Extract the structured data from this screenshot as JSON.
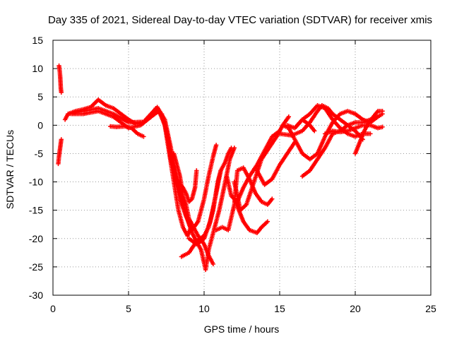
{
  "chart_data": {
    "type": "scatter",
    "title": "Day 335 of 2021, Sidereal Day-to-day VTEC variation (SDTVAR) for receiver xmis",
    "xlabel": "GPS time / hours",
    "ylabel": "SDTVAR / TECUs",
    "xlim": [
      0,
      25
    ],
    "ylim": [
      -30,
      15
    ],
    "xticks": [
      "0",
      "5",
      "10",
      "15",
      "20",
      "25"
    ],
    "yticks": [
      "15",
      "10",
      "5",
      "0",
      "-5",
      "-10",
      "-15",
      "-20",
      "-25",
      "-30"
    ],
    "grid": true,
    "marker": "+",
    "color": "#ff0000",
    "series": [
      {
        "points": [
          [
            0.4,
            10.5
          ],
          [
            0.45,
            9.5
          ],
          [
            0.48,
            8.5
          ],
          [
            0.5,
            7.5
          ],
          [
            0.52,
            6.5
          ],
          [
            0.55,
            5.8
          ]
        ]
      },
      {
        "points": [
          [
            0.35,
            -6.8
          ],
          [
            0.4,
            -5.5
          ],
          [
            0.45,
            -4.5
          ],
          [
            0.5,
            -3.5
          ],
          [
            0.55,
            -2.5
          ]
        ]
      },
      {
        "points": [
          [
            0.8,
            1.0
          ],
          [
            1.0,
            2.0
          ],
          [
            1.5,
            2.5
          ],
          [
            2.0,
            2.8
          ],
          [
            2.5,
            3.2
          ],
          [
            3.0,
            4.5
          ],
          [
            3.5,
            3.5
          ],
          [
            4.0,
            3.0
          ],
          [
            4.5,
            2.0
          ],
          [
            5.0,
            1.0
          ],
          [
            5.5,
            0.2
          ],
          [
            6.0,
            0.5
          ],
          [
            6.5,
            1.5
          ],
          [
            6.8,
            3.0
          ],
          [
            7.1,
            2.0
          ],
          [
            7.4,
            0.0
          ],
          [
            7.7,
            -5.0
          ],
          [
            8.0,
            -10.0
          ],
          [
            8.3,
            -15.0
          ],
          [
            8.6,
            -18.0
          ],
          [
            8.9,
            -19.5
          ],
          [
            9.2,
            -17.5
          ]
        ]
      },
      {
        "points": [
          [
            1.0,
            2.0
          ],
          [
            2.0,
            2.5
          ],
          [
            3.0,
            3.0
          ],
          [
            3.5,
            2.5
          ],
          [
            4.0,
            2.0
          ],
          [
            5.0,
            0.5
          ],
          [
            6.0,
            0.6
          ],
          [
            6.9,
            3.2
          ],
          [
            7.4,
            1.0
          ],
          [
            7.8,
            -4.0
          ],
          [
            8.1,
            -9.0
          ],
          [
            8.4,
            -13.0
          ],
          [
            8.8,
            -16.0
          ],
          [
            9.2,
            -18.5
          ],
          [
            9.6,
            -17.0
          ],
          [
            10.0,
            -13.0
          ],
          [
            10.3,
            -9.0
          ],
          [
            10.6,
            -5.5
          ],
          [
            10.8,
            -3.5
          ]
        ]
      },
      {
        "points": [
          [
            1.2,
            2.0
          ],
          [
            2.0,
            2.0
          ],
          [
            3.0,
            2.5
          ],
          [
            4.0,
            1.5
          ],
          [
            5.0,
            -0.5
          ],
          [
            5.8,
            0.0
          ],
          [
            6.5,
            1.5
          ],
          [
            7.0,
            2.5
          ],
          [
            7.4,
            0.5
          ],
          [
            7.8,
            -6.0
          ],
          [
            8.0,
            -8.0
          ],
          [
            8.3,
            -11.0
          ],
          [
            8.7,
            -15.0
          ],
          [
            9.2,
            -19.0
          ],
          [
            9.8,
            -22.0
          ],
          [
            10.1,
            -25.5
          ],
          [
            10.3,
            -22.0
          ],
          [
            10.6,
            -19.0
          ],
          [
            11.0,
            -15.0
          ],
          [
            11.4,
            -10.0
          ],
          [
            11.7,
            -6.0
          ],
          [
            12.0,
            -4.0
          ]
        ]
      },
      {
        "points": [
          [
            3.8,
            -0.2
          ],
          [
            4.2,
            -0.3
          ],
          [
            4.8,
            -0.2
          ],
          [
            5.2,
            -0.5
          ],
          [
            5.6,
            -1.5
          ],
          [
            6.0,
            -2.0
          ]
        ]
      },
      {
        "points": [
          [
            7.2,
            2.0
          ],
          [
            7.5,
            -1.0
          ],
          [
            7.8,
            -5.0
          ],
          [
            8.0,
            -8.0
          ],
          [
            8.3,
            -10.0
          ],
          [
            8.6,
            -11.0
          ],
          [
            8.8,
            -12.0
          ],
          [
            9.0,
            -13.5
          ],
          [
            9.2,
            -13.0
          ],
          [
            9.4,
            -11.0
          ],
          [
            9.5,
            -8.0
          ]
        ]
      },
      {
        "points": [
          [
            8.5,
            -23.2
          ],
          [
            9.0,
            -22.5
          ],
          [
            9.5,
            -20.5
          ],
          [
            10.0,
            -19.5
          ],
          [
            10.3,
            -18.0
          ],
          [
            10.6,
            -15.0
          ],
          [
            10.9,
            -10.0
          ],
          [
            11.1,
            -8.0
          ],
          [
            11.4,
            -6.5
          ],
          [
            11.6,
            -5.0
          ],
          [
            11.8,
            -4.0
          ]
        ]
      },
      {
        "points": [
          [
            9.0,
            -19.0
          ],
          [
            9.3,
            -18.0
          ],
          [
            9.6,
            -19.5
          ],
          [
            10.0,
            -21.0
          ],
          [
            10.3,
            -23.0
          ],
          [
            10.6,
            -24.5
          ]
        ]
      },
      {
        "points": [
          [
            10.8,
            -18.5
          ],
          [
            11.2,
            -18.0
          ],
          [
            11.6,
            -18.5
          ],
          [
            12.0,
            -14.0
          ],
          [
            12.2,
            -8.0
          ],
          [
            12.6,
            -7.5
          ],
          [
            13.0,
            -9.5
          ],
          [
            13.4,
            -12.0
          ],
          [
            13.8,
            -13.5
          ],
          [
            14.2,
            -14.0
          ],
          [
            14.5,
            -13.0
          ]
        ]
      },
      {
        "points": [
          [
            12.0,
            -13.0
          ],
          [
            12.3,
            -15.0
          ],
          [
            12.6,
            -17.0
          ],
          [
            13.0,
            -18.5
          ],
          [
            13.5,
            -19.0
          ],
          [
            13.8,
            -18.0
          ],
          [
            14.2,
            -17.0
          ]
        ]
      },
      {
        "points": [
          [
            12.0,
            -10.0
          ],
          [
            12.4,
            -15.0
          ],
          [
            12.8,
            -14.0
          ],
          [
            13.3,
            -10.0
          ],
          [
            13.8,
            -6.0
          ],
          [
            14.3,
            -4.0
          ],
          [
            14.8,
            -2.0
          ],
          [
            15.2,
            0.0
          ],
          [
            15.6,
            1.5
          ]
        ]
      },
      {
        "points": [
          [
            11.5,
            -9.0
          ],
          [
            11.8,
            -12.5
          ],
          [
            12.2,
            -13.5
          ],
          [
            12.6,
            -11.0
          ],
          [
            13.0,
            -9.0
          ],
          [
            13.5,
            -7.0
          ],
          [
            14.0,
            -4.5
          ],
          [
            14.5,
            -2.0
          ],
          [
            15.0,
            -1.0
          ]
        ]
      },
      {
        "points": [
          [
            13.5,
            -8.0
          ],
          [
            14.0,
            -10.5
          ],
          [
            14.5,
            -9.5
          ],
          [
            15.0,
            -7.0
          ],
          [
            15.5,
            -5.0
          ],
          [
            16.0,
            -3.0
          ]
        ]
      },
      {
        "points": [
          [
            15.0,
            -1.5
          ],
          [
            15.8,
            -1.8
          ],
          [
            16.5,
            -1.0
          ],
          [
            17.0,
            0.5
          ],
          [
            17.5,
            2.5
          ],
          [
            17.8,
            3.5
          ],
          [
            18.2,
            3.0
          ],
          [
            18.5,
            2.0
          ],
          [
            19.0,
            1.0
          ],
          [
            19.5,
            0.0
          ],
          [
            20.0,
            -1.0
          ],
          [
            20.5,
            -2.5
          ]
        ]
      },
      {
        "points": [
          [
            15.2,
            0.0
          ],
          [
            15.6,
            -0.5
          ],
          [
            16.0,
            -2.5
          ],
          [
            16.5,
            -5.0
          ],
          [
            17.0,
            -6.0
          ],
          [
            17.5,
            -5.0
          ],
          [
            18.0,
            -2.0
          ],
          [
            18.5,
            0.5
          ],
          [
            19.0,
            2.0
          ],
          [
            19.5,
            2.5
          ],
          [
            20.0,
            2.0
          ],
          [
            20.5,
            1.0
          ],
          [
            21.0,
            0.5
          ],
          [
            21.5,
            1.5
          ],
          [
            21.8,
            2.0
          ]
        ]
      },
      {
        "points": [
          [
            16.5,
            -9.0
          ],
          [
            17.0,
            -8.0
          ],
          [
            17.5,
            -6.0
          ],
          [
            18.0,
            -4.0
          ],
          [
            18.5,
            -1.5
          ],
          [
            19.0,
            -1.0
          ],
          [
            19.5,
            0.0
          ],
          [
            20.0,
            0.5
          ],
          [
            20.5,
            0.5
          ],
          [
            21.0,
            1.0
          ],
          [
            21.5,
            1.5
          ]
        ]
      },
      {
        "points": [
          [
            16.0,
            -0.5
          ],
          [
            16.5,
            1.0
          ],
          [
            17.0,
            2.0
          ],
          [
            17.5,
            3.5
          ],
          [
            18.0,
            3.0
          ],
          [
            18.5,
            1.0
          ],
          [
            19.0,
            -0.5
          ],
          [
            19.5,
            -1.5
          ],
          [
            20.0,
            -2.0
          ],
          [
            20.5,
            -1.5
          ],
          [
            21.0,
            -1.5
          ]
        ]
      },
      {
        "points": [
          [
            18.0,
            -1.5
          ],
          [
            18.5,
            -1.0
          ],
          [
            19.0,
            -1.2
          ],
          [
            19.5,
            -1.0
          ],
          [
            20.0,
            -0.5
          ],
          [
            20.5,
            0.0
          ],
          [
            21.0,
            0.0
          ],
          [
            21.5,
            -0.5
          ],
          [
            21.8,
            -0.3
          ]
        ]
      },
      {
        "points": [
          [
            20.0,
            -5.0
          ],
          [
            20.3,
            -3.0
          ],
          [
            20.6,
            -1.0
          ],
          [
            20.9,
            0.5
          ],
          [
            21.2,
            1.5
          ],
          [
            21.5,
            2.5
          ],
          [
            21.8,
            2.5
          ]
        ]
      },
      {
        "points": [
          [
            15.5,
            0.0
          ],
          [
            16.0,
            -0.5
          ],
          [
            16.5,
            1.0
          ],
          [
            17.0,
            0.0
          ],
          [
            17.3,
            -1.0
          ]
        ]
      },
      {
        "points": [
          [
            9.0,
            -20.0
          ],
          [
            9.5,
            -21.0
          ],
          [
            10.0,
            -20.0
          ],
          [
            10.4,
            -17.0
          ],
          [
            10.8,
            -12.0
          ],
          [
            11.1,
            -8.0
          ]
        ]
      },
      {
        "points": [
          [
            8.0,
            -5.0
          ],
          [
            8.2,
            -7.0
          ],
          [
            8.4,
            -9.0
          ],
          [
            8.6,
            -12.5
          ],
          [
            8.8,
            -14.0
          ],
          [
            9.0,
            -16.5
          ],
          [
            9.2,
            -17.5
          ]
        ]
      }
    ]
  }
}
